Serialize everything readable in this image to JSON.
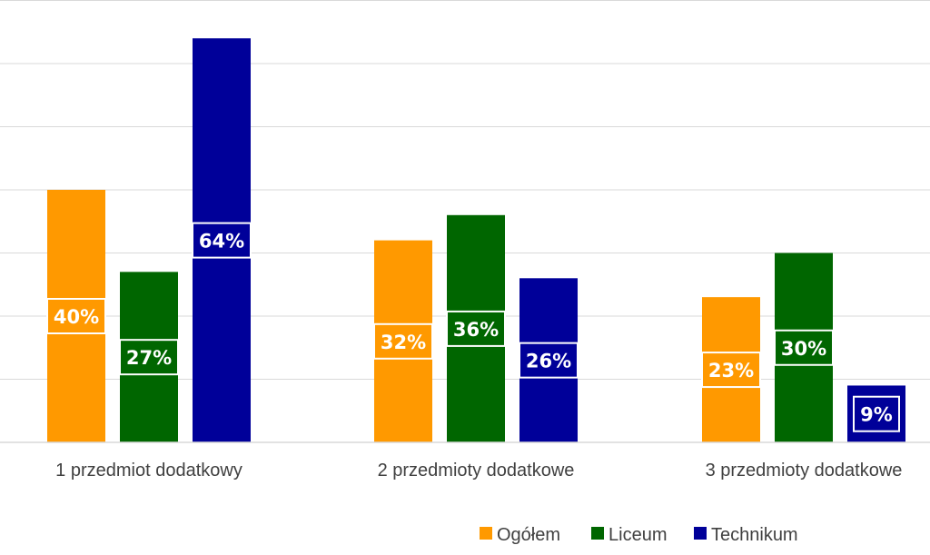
{
  "chart_data": {
    "type": "bar",
    "categories": [
      "1 przedmiot dodatkowy",
      "2 przedmioty dodatkowe",
      "3 przedmioty dodatkowe"
    ],
    "series": [
      {
        "name": "Ogółem",
        "color": "#FF9900",
        "values": [
          40,
          32,
          23
        ],
        "labels": [
          "40%",
          "32%",
          "23%"
        ]
      },
      {
        "name": "Liceum",
        "color": "#006600",
        "values": [
          27,
          36,
          30
        ],
        "labels": [
          "27%",
          "36%",
          "30%"
        ]
      },
      {
        "name": "Technikum",
        "color": "#000099",
        "values": [
          64,
          26,
          9
        ],
        "labels": [
          "64%",
          "26%",
          "9%"
        ]
      }
    ],
    "unit": "%",
    "ylim": [
      0,
      70
    ],
    "grid": true,
    "legend": "bottom"
  }
}
